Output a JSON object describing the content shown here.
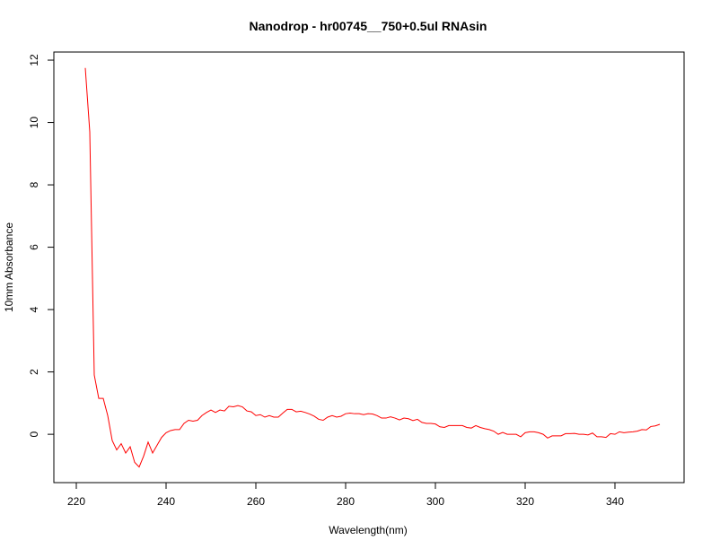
{
  "chart_data": {
    "type": "line",
    "title": "Nanodrop - hr00745__750+0.5ul RNAsin",
    "x_label": "Wavelength(nm)",
    "y_label": "10mm Absorbance",
    "x": [
      222,
      223,
      224,
      225,
      226,
      227,
      228,
      229,
      230,
      231,
      232,
      233,
      234,
      235,
      236,
      237,
      238,
      239,
      240,
      241,
      242,
      243,
      244,
      245,
      246,
      247,
      248,
      249,
      250,
      251,
      252,
      253,
      254,
      255,
      256,
      257,
      258,
      259,
      260,
      261,
      262,
      263,
      264,
      265,
      266,
      267,
      268,
      269,
      270,
      271,
      272,
      273,
      274,
      275,
      276,
      277,
      278,
      279,
      280,
      281,
      282,
      283,
      284,
      285,
      286,
      287,
      288,
      289,
      290,
      291,
      292,
      293,
      294,
      295,
      296,
      297,
      298,
      299,
      300,
      301,
      302,
      303,
      304,
      305,
      306,
      307,
      308,
      309,
      310,
      311,
      312,
      313,
      314,
      315,
      316,
      317,
      318,
      319,
      320,
      321,
      322,
      323,
      324,
      325,
      326,
      327,
      328,
      329,
      330,
      331,
      332,
      333,
      334,
      335,
      336,
      337,
      338,
      339,
      340,
      341,
      342,
      343,
      344,
      345,
      346,
      347,
      348,
      349,
      350
    ],
    "series": [
      {
        "name": "absorbance",
        "color": "#ff0000",
        "values": [
          11.75,
          9.7,
          1.9,
          1.15,
          1.15,
          0.6,
          -0.2,
          -0.5,
          -0.3,
          -0.6,
          -0.4,
          -0.9,
          -1.05,
          -0.7,
          -0.25,
          -0.6,
          -0.35,
          -0.1,
          0.05,
          0.12,
          0.15,
          0.15,
          0.35,
          0.45,
          0.42,
          0.45,
          0.6,
          0.7,
          0.78,
          0.7,
          0.78,
          0.75,
          0.9,
          0.88,
          0.92,
          0.88,
          0.75,
          0.72,
          0.6,
          0.63,
          0.55,
          0.6,
          0.55,
          0.55,
          0.68,
          0.8,
          0.8,
          0.72,
          0.74,
          0.7,
          0.65,
          0.58,
          0.48,
          0.45,
          0.55,
          0.6,
          0.55,
          0.58,
          0.66,
          0.68,
          0.66,
          0.66,
          0.63,
          0.66,
          0.65,
          0.6,
          0.52,
          0.52,
          0.56,
          0.52,
          0.46,
          0.52,
          0.5,
          0.44,
          0.48,
          0.38,
          0.35,
          0.35,
          0.33,
          0.24,
          0.22,
          0.28,
          0.28,
          0.28,
          0.28,
          0.22,
          0.2,
          0.28,
          0.22,
          0.18,
          0.15,
          0.1,
          0.0,
          0.06,
          0.0,
          0.0,
          0.0,
          -0.08,
          0.05,
          0.08,
          0.08,
          0.05,
          0.0,
          -0.12,
          -0.05,
          -0.05,
          -0.05,
          0.02,
          0.02,
          0.03,
          0.0,
          0.0,
          -0.02,
          0.04,
          -0.08,
          -0.08,
          -0.1,
          0.02,
          0.0,
          0.08,
          0.05,
          0.07,
          0.08,
          0.1,
          0.15,
          0.14,
          0.25,
          0.27,
          0.32
        ]
      }
    ],
    "xlim": [
      215,
      355.4
    ],
    "ylim": [
      -1.55,
      12.26
    ],
    "xticks": [
      220,
      240,
      260,
      280,
      300,
      320,
      340
    ],
    "yticks": [
      0,
      2,
      4,
      6,
      8,
      10,
      12
    ]
  }
}
